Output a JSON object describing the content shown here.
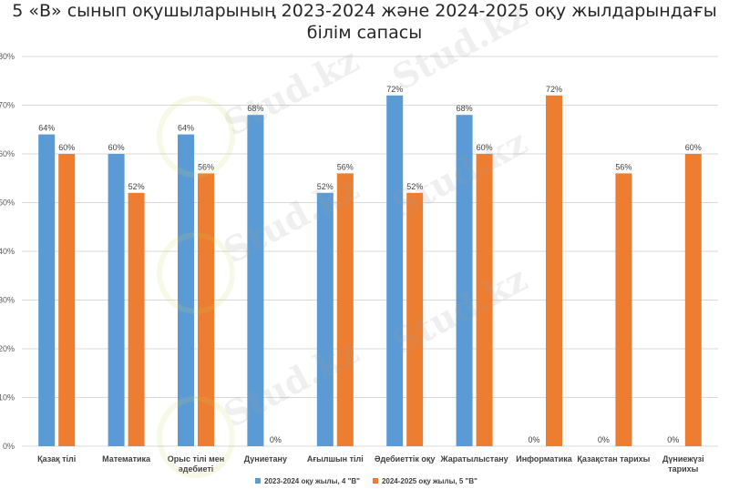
{
  "chart_data": {
    "type": "bar",
    "title_lines": [
      "5 «В» сынып оқушыларының 2023-2024 және 2024-2025 оқу жылдарындағы",
      "білім сапасы"
    ],
    "categories": [
      [
        "Қазақ тілі"
      ],
      [
        "Математика"
      ],
      [
        "Орыс тілі мен",
        "әдебиеті"
      ],
      [
        "Дуниетану"
      ],
      [
        "Ағылшын тілі"
      ],
      [
        "Әдебиеттік  оқу"
      ],
      [
        "Жаратылыстану"
      ],
      [
        "Информатика"
      ],
      [
        "Қазақстан тарихы"
      ],
      [
        "Дүниежүзі",
        "тарихы"
      ]
    ],
    "series": [
      {
        "name": "2023-2024 оқу жылы, 4 \"В\"",
        "color": "#5b9bd5",
        "values": [
          64,
          60,
          64,
          68,
          52,
          72,
          68,
          0,
          0,
          0
        ]
      },
      {
        "name": "2024-2025 оқу жылы, 5 \"В\"",
        "color": "#ed7d31",
        "values": [
          60,
          52,
          56,
          0,
          56,
          52,
          60,
          72,
          56,
          60
        ]
      }
    ],
    "value_suffix": "%",
    "ylim": [
      0,
      80
    ],
    "yticks": [
      0,
      10,
      20,
      30,
      40,
      50,
      60,
      70,
      80
    ],
    "grid": true,
    "legend_position": "bottom",
    "watermark_text": "Stud.kz"
  }
}
